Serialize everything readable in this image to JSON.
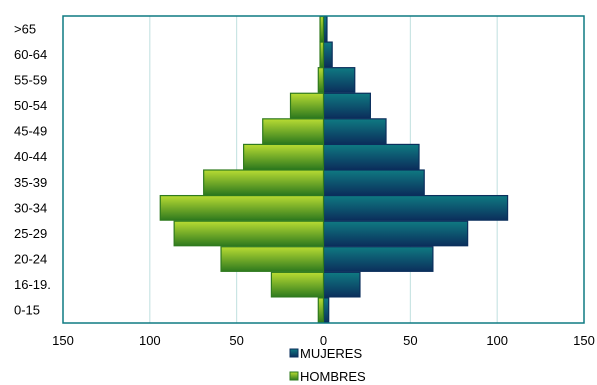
{
  "chart_data": {
    "type": "bar",
    "orientation": "horizontal",
    "categories": [
      "0-15",
      "16-19.",
      "20-24",
      "25-29",
      "30-34",
      "35-39",
      "40-44",
      "45-49",
      "50-54",
      "55-59",
      "60-64",
      ">65"
    ],
    "series": [
      {
        "name": "MUJERES",
        "values": [
          3,
          21,
          63,
          83,
          106,
          58,
          55,
          36,
          27,
          18,
          5,
          2
        ]
      },
      {
        "name": "HOMBRES",
        "values": [
          3,
          30,
          59,
          86,
          94,
          69,
          46,
          35,
          19,
          3,
          2,
          2
        ]
      }
    ],
    "xlim": [
      -150,
      150
    ],
    "xticks": [
      -150,
      -100,
      -50,
      0,
      50,
      100,
      150
    ],
    "xtick_labels": [
      "150",
      "100",
      "50",
      "0",
      "50",
      "100",
      "150"
    ],
    "grid": true,
    "legend_position": "bottom",
    "colors": {
      "MUJERES_dark": "#0b2f5c",
      "MUJERES_light": "#0f7a82",
      "HOMBRES_dark": "#2f7a1e",
      "HOMBRES_light": "#b9dc33",
      "plot_border": "#0f7a82",
      "gridline": "#bfe0df"
    }
  }
}
